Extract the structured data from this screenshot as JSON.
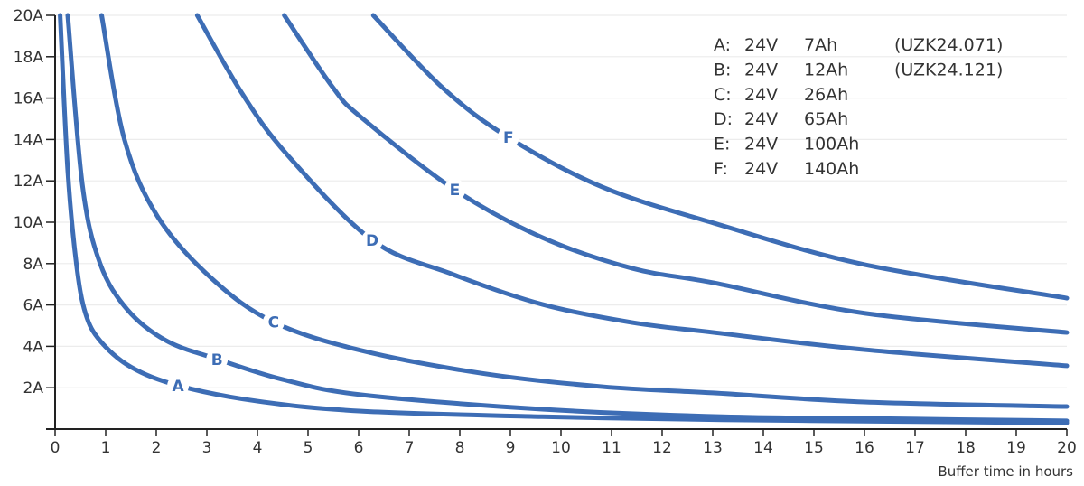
{
  "chart_data": {
    "type": "line",
    "title": "",
    "xlabel": "Buffer time in hours",
    "ylabel": "",
    "xlim": [
      0,
      20
    ],
    "ylim": [
      0,
      20
    ],
    "x_ticks": [
      "0",
      "1",
      "2",
      "3",
      "4",
      "5",
      "6",
      "7",
      "8",
      "9",
      "10",
      "11",
      "12",
      "13",
      "14",
      "15",
      "16",
      "17",
      "18",
      "19",
      "20"
    ],
    "y_ticks": [
      {
        "value": 2,
        "label": "2A"
      },
      {
        "value": 4,
        "label": "4A"
      },
      {
        "value": 6,
        "label": "6A"
      },
      {
        "value": 8,
        "label": "8A"
      },
      {
        "value": 10,
        "label": "10A"
      },
      {
        "value": 12,
        "label": "12A"
      },
      {
        "value": 14,
        "label": "14A"
      },
      {
        "value": 16,
        "label": "16A"
      },
      {
        "value": 18,
        "label": "18A"
      },
      {
        "value": 20,
        "label": "20A"
      }
    ],
    "grid": "horizontal",
    "line_color": "#3d6db5",
    "legend_position": "top-right",
    "series": [
      {
        "name": "A",
        "label_point": [
          2.43,
          2.1
        ],
        "points": [
          [
            0.1,
            20
          ],
          [
            0.25,
            12.5
          ],
          [
            0.42,
            8.0
          ],
          [
            0.6,
            5.6
          ],
          [
            0.89,
            4.27
          ],
          [
            1.5,
            3.0
          ],
          [
            2.44,
            2.1
          ],
          [
            4.0,
            1.35
          ],
          [
            6.05,
            0.87
          ],
          [
            9.63,
            0.6
          ],
          [
            13.2,
            0.45
          ],
          [
            16.5,
            0.37
          ],
          [
            20,
            0.3
          ]
        ]
      },
      {
        "name": "B",
        "label_point": [
          3.2,
          3.37
        ],
        "points": [
          [
            0.25,
            20
          ],
          [
            0.54,
            11.8
          ],
          [
            0.89,
            8.0
          ],
          [
            1.43,
            5.77
          ],
          [
            2.2,
            4.27
          ],
          [
            3.22,
            3.37
          ],
          [
            4.5,
            2.4
          ],
          [
            6.05,
            1.66
          ],
          [
            9.63,
            0.96
          ],
          [
            13.2,
            0.6
          ],
          [
            16.5,
            0.5
          ],
          [
            20,
            0.4
          ]
        ]
      },
      {
        "name": "C",
        "label_point": [
          4.32,
          5.17
        ],
        "points": [
          [
            0.92,
            20
          ],
          [
            1.37,
            14.0
          ],
          [
            2.03,
            10.26
          ],
          [
            3.1,
            7.27
          ],
          [
            4.32,
            5.17
          ],
          [
            6.05,
            3.8
          ],
          [
            8.43,
            2.7
          ],
          [
            10.82,
            2.05
          ],
          [
            13.0,
            1.75
          ],
          [
            16,
            1.31
          ],
          [
            20,
            1.09
          ]
        ]
      },
      {
        "name": "D",
        "label_point": [
          6.27,
          9.13
        ],
        "points": [
          [
            2.81,
            20
          ],
          [
            3.69,
            16.25
          ],
          [
            4.59,
            13.26
          ],
          [
            6.27,
            9.13
          ],
          [
            7.84,
            7.5
          ],
          [
            9.63,
            6.03
          ],
          [
            11.41,
            5.15
          ],
          [
            13.02,
            4.67
          ],
          [
            16,
            3.84
          ],
          [
            20,
            3.06
          ]
        ]
      },
      {
        "name": "E",
        "label_point": [
          7.9,
          11.57
        ],
        "points": [
          [
            4.53,
            20
          ],
          [
            5.48,
            16.55
          ],
          [
            6.05,
            15.07
          ],
          [
            7.9,
            11.57
          ],
          [
            9.63,
            9.26
          ],
          [
            11.41,
            7.77
          ],
          [
            13.02,
            7.07
          ],
          [
            16,
            5.6
          ],
          [
            20,
            4.67
          ]
        ]
      },
      {
        "name": "F",
        "label_point": [
          8.96,
          14.1
        ],
        "points": [
          [
            6.29,
            20
          ],
          [
            7.66,
            16.5
          ],
          [
            8.96,
            14.1
          ],
          [
            10.82,
            11.7
          ],
          [
            13.02,
            9.96
          ],
          [
            16,
            7.95
          ],
          [
            20,
            6.33
          ]
        ]
      }
    ]
  },
  "legend": [
    {
      "letter": "A:",
      "voltage": "24V",
      "capacity": "7Ah",
      "model": "(UZK24.071)"
    },
    {
      "letter": "B:",
      "voltage": "24V",
      "capacity": "12Ah",
      "model": "(UZK24.121)"
    },
    {
      "letter": "C:",
      "voltage": "24V",
      "capacity": "26Ah",
      "model": ""
    },
    {
      "letter": "D:",
      "voltage": "24V",
      "capacity": "65Ah",
      "model": ""
    },
    {
      "letter": "E:",
      "voltage": "24V",
      "capacity": "100Ah",
      "model": ""
    },
    {
      "letter": "F:",
      "voltage": "24V",
      "capacity": "140Ah",
      "model": ""
    }
  ]
}
